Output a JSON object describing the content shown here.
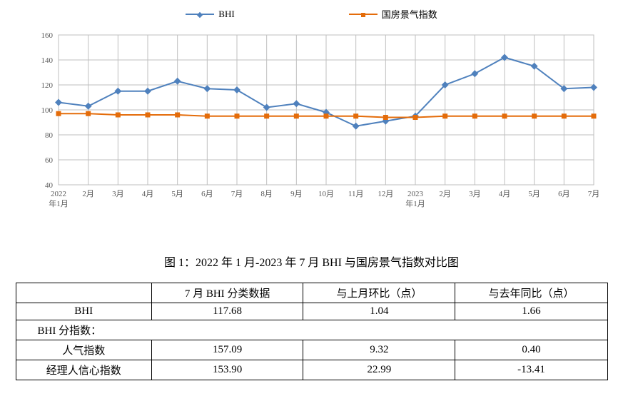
{
  "chart": {
    "type": "line",
    "legend": [
      {
        "label": "BHI",
        "color": "#4f81bd"
      },
      {
        "label": "国房景气指数",
        "color": "#e46c0a"
      }
    ],
    "categories": [
      "2022年1月",
      "2月",
      "3月",
      "4月",
      "5月",
      "6月",
      "7月",
      "8月",
      "9月",
      "10月",
      "11月",
      "12月",
      "2023年1月",
      "2月",
      "3月",
      "4月",
      "5月",
      "6月",
      "7月"
    ],
    "series": [
      {
        "name": "BHI",
        "color": "#4f81bd",
        "marker": "diamond",
        "values": [
          106,
          103,
          115,
          115,
          123,
          117,
          116,
          102,
          105,
          98,
          87,
          91,
          95,
          120,
          129,
          142,
          135,
          117,
          118
        ]
      },
      {
        "name": "国房景气指数",
        "color": "#e46c0a",
        "marker": "square",
        "values": [
          97,
          97,
          96,
          96,
          96,
          95,
          95,
          95,
          95,
          95,
          95,
          94,
          94,
          95,
          95,
          95,
          95,
          95,
          95
        ]
      }
    ],
    "ylim": [
      40,
      160
    ],
    "ytick_step": 20,
    "grid_color": "#bfbfbf",
    "background_color": "#ffffff",
    "axis_font_size": 11,
    "axis_font_color": "#595959"
  },
  "caption": "图 1：2022 年 1 月-2023 年 7 月 BHI 与国房景气指数对比图",
  "table": {
    "columns": [
      "",
      "7 月 BHI 分类数据",
      "与上月环比（点）",
      "与去年同比（点）"
    ],
    "rows": [
      {
        "label": "BHI",
        "cells": [
          "117.68",
          "1.04",
          "1.66"
        ]
      }
    ],
    "subhead": "BHI 分指数：",
    "sub_rows": [
      {
        "label": "人气指数",
        "cells": [
          "157.09",
          "9.32",
          "0.40"
        ]
      },
      {
        "label": "经理人信心指数",
        "cells": [
          "153.90",
          "22.99",
          "-13.41"
        ]
      }
    ]
  }
}
